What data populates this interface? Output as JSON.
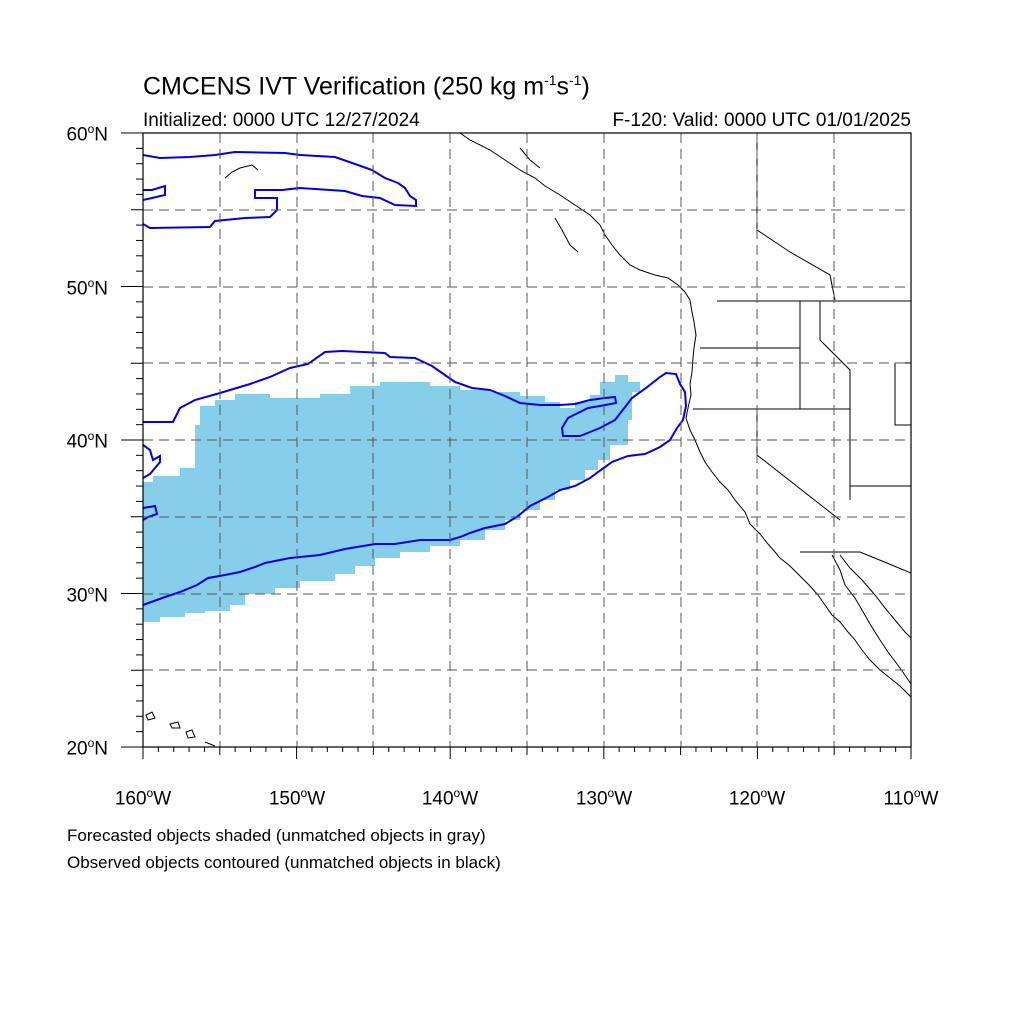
{
  "title": {
    "main": "CMCENS IVT Verification (250 kg m",
    "exp1": "-1",
    "mid": "s",
    "exp2": "-1",
    "end": ")"
  },
  "subtitle_left": "Initialized: 0000 UTC 12/27/2024",
  "subtitle_right": "F-120: Valid: 0000 UTC 01/01/2025",
  "lat_labels": [
    {
      "value": "60",
      "suffix": "N"
    },
    {
      "value": "50",
      "suffix": "N"
    },
    {
      "value": "40",
      "suffix": "N"
    },
    {
      "value": "30",
      "suffix": "N"
    },
    {
      "value": "20",
      "suffix": "N"
    }
  ],
  "lon_labels": [
    {
      "value": "160",
      "suffix": "W"
    },
    {
      "value": "150",
      "suffix": "W"
    },
    {
      "value": "140",
      "suffix": "W"
    },
    {
      "value": "130",
      "suffix": "W"
    },
    {
      "value": "120",
      "suffix": "W"
    },
    {
      "value": "110",
      "suffix": "W"
    }
  ],
  "degree_symbol": "o",
  "notes": {
    "line1": "Forecasted objects shaded (unmatched objects in gray)",
    "line2": "Observed objects contoured (unmatched objects in black)"
  },
  "colors": {
    "forecast_fill": "#87ceeb",
    "observed_contour": "#0000e6",
    "coast": "#000000",
    "grid": "#555555"
  },
  "map_extent": {
    "lon_min": -160,
    "lon_max": -110,
    "lat_min": 20,
    "lat_max": 60
  }
}
